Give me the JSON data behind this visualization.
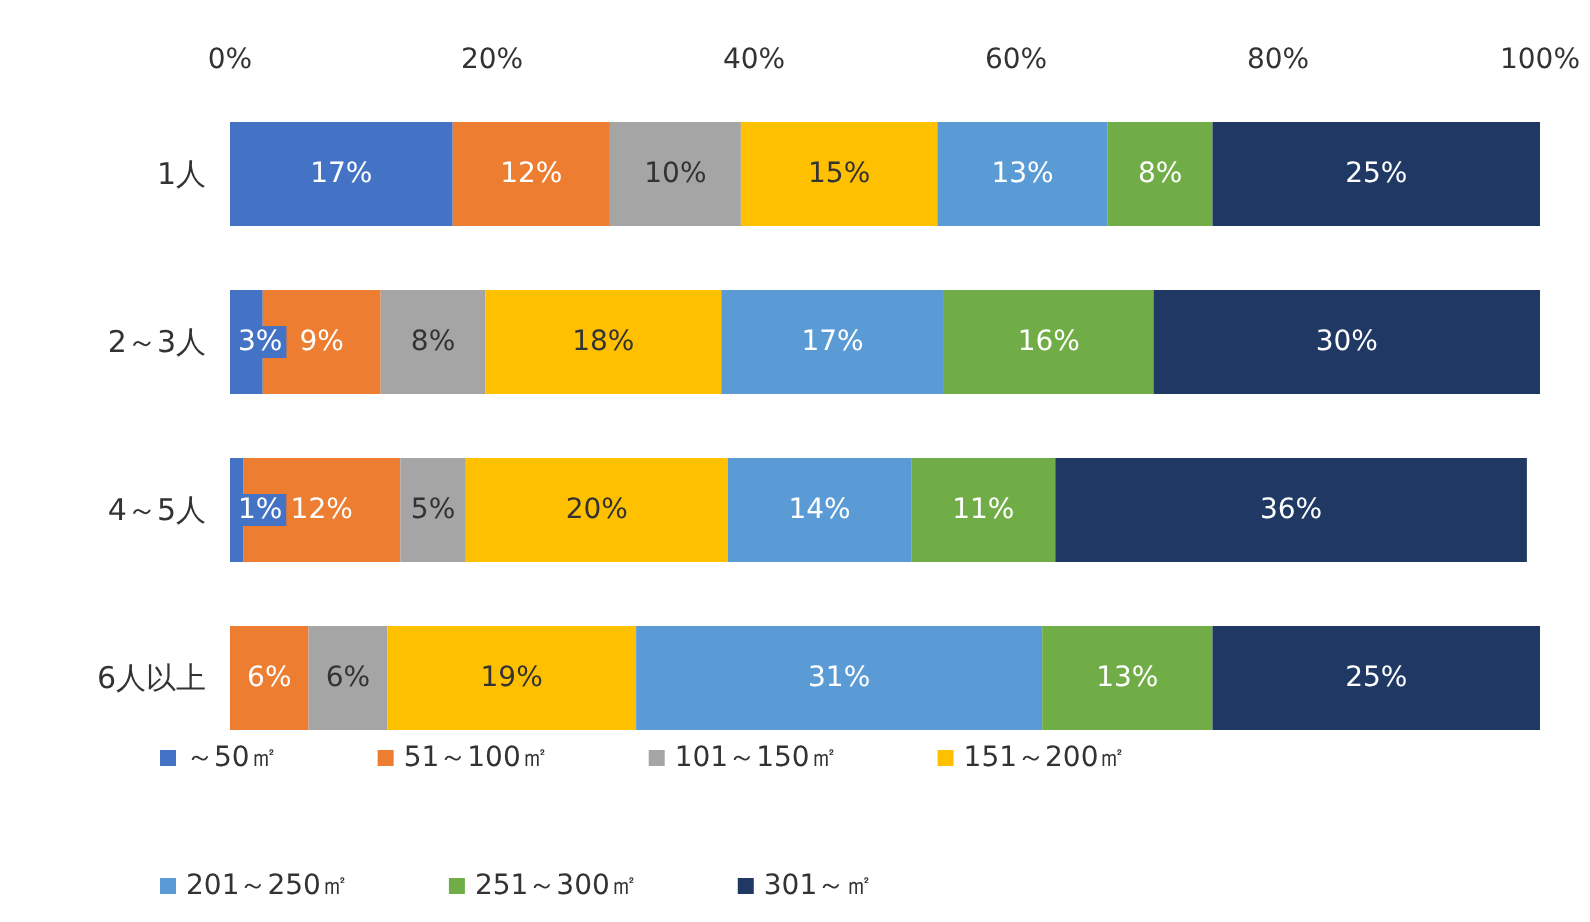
{
  "chart_data": {
    "type": "bar",
    "orientation": "horizontal",
    "stacked": true,
    "legend": "bottom",
    "grid": false,
    "categories": [
      "1人",
      "2～3人",
      "4～5人",
      "6人以上"
    ],
    "xlim": [
      0,
      100
    ],
    "xticks": [
      {
        "value": 0,
        "label": "0%"
      },
      {
        "value": 20,
        "label": "20%"
      },
      {
        "value": 40,
        "label": "40%"
      },
      {
        "value": 60,
        "label": "60%"
      },
      {
        "value": 80,
        "label": "80%"
      },
      {
        "value": 100,
        "label": "100%"
      }
    ],
    "series": [
      {
        "name": "～50㎡",
        "color": "#4472c4",
        "values": [
          17,
          2.5,
          1,
          null
        ],
        "value_labels": [
          "17%",
          "3%",
          "1%",
          null
        ]
      },
      {
        "name": "51～100㎡",
        "color": "#ed7d31",
        "values": [
          12,
          9,
          12,
          6
        ],
        "value_labels": [
          "12%",
          "9%",
          "12%",
          "6%"
        ]
      },
      {
        "name": "101～150㎡",
        "color": "#a5a5a5",
        "values": [
          10,
          8,
          5,
          6
        ],
        "value_labels": [
          "10%",
          "8%",
          "5%",
          "6%"
        ]
      },
      {
        "name": "151～200㎡",
        "color": "#ffc000",
        "values": [
          15,
          18,
          20,
          19
        ],
        "value_labels": [
          "15%",
          "18%",
          "20%",
          "19%"
        ]
      },
      {
        "name": "201～250㎡",
        "color": "#5b9bd5",
        "values": [
          13,
          17,
          14,
          31
        ],
        "value_labels": [
          "13%",
          "17%",
          "14%",
          "31%"
        ]
      },
      {
        "name": "251～300㎡",
        "color": "#70ad47",
        "values": [
          8,
          16,
          11,
          13
        ],
        "value_labels": [
          "8%",
          "16%",
          "11%",
          "13%"
        ]
      },
      {
        "name": "301～㎡",
        "color": "#203864",
        "values": [
          25,
          29.5,
          36,
          25
        ],
        "value_labels": [
          "25%",
          "30%",
          "36%",
          "25%"
        ]
      }
    ]
  }
}
